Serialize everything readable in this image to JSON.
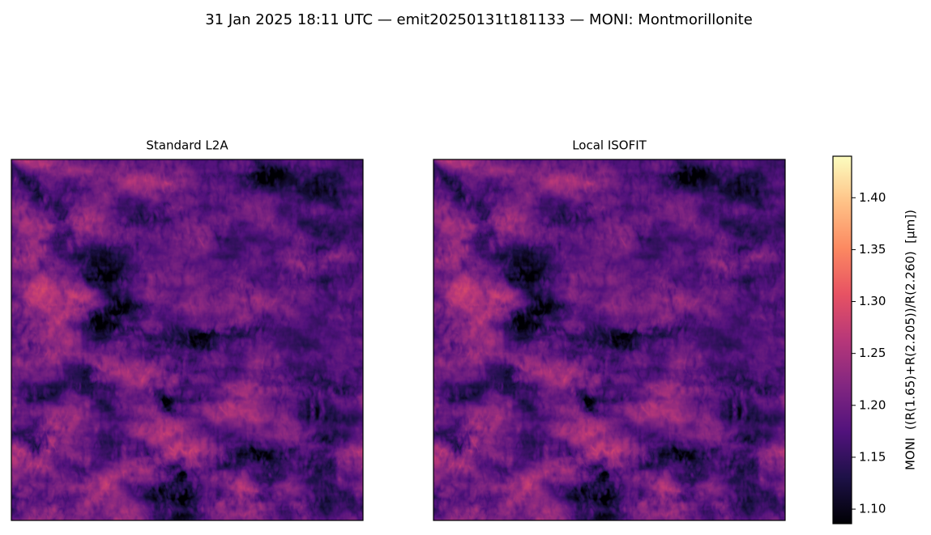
{
  "chart_data": {
    "type": "image",
    "title": "31 Jan 2025 18:11 UTC — emit20250131t181133 — MONI: Montmorillonite",
    "panels": [
      {
        "title": "Standard L2A"
      },
      {
        "title": "Local ISOFIT"
      }
    ],
    "colormap": [
      "#000004",
      "#1d1147",
      "#51127c",
      "#822681",
      "#b73779",
      "#e75263",
      "#fc8961",
      "#fec287",
      "#fcfdbf"
    ],
    "colorbar": {
      "label": "MONI  ((R(1.65)+R(2.205))/R(2.260)  [µm])",
      "clim": [
        1.086,
        1.44
      ],
      "ticks": [
        {
          "value": 1.1,
          "label": "1.10"
        },
        {
          "value": 1.15,
          "label": "1.15"
        },
        {
          "value": 1.2,
          "label": "1.20"
        },
        {
          "value": 1.25,
          "label": "1.25"
        },
        {
          "value": 1.3,
          "label": "1.30"
        },
        {
          "value": 1.35,
          "label": "1.35"
        },
        {
          "value": 1.4,
          "label": "1.40"
        }
      ]
    }
  }
}
